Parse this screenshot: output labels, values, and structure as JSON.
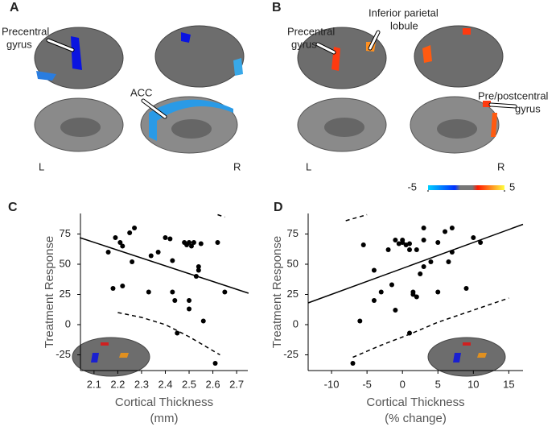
{
  "brain_panels": [
    {
      "label": "A",
      "annotations": [
        {
          "lines": [
            "Precentral",
            "gyrus"
          ]
        },
        {
          "lines": [
            "ACC"
          ]
        }
      ],
      "hemisphere_labels": [
        "L",
        "R"
      ]
    },
    {
      "label": "B",
      "annotations": [
        {
          "lines": [
            "Precentral",
            "gyrus"
          ]
        },
        {
          "lines": [
            "Inferior parietal",
            "lobule"
          ]
        },
        {
          "lines": [
            "Pre/postcentral",
            "gyrus"
          ]
        }
      ],
      "hemisphere_labels": [
        "L",
        "R"
      ],
      "colorbar": {
        "ticks": [
          -5,
          5
        ]
      }
    }
  ],
  "chart_data": [
    {
      "type": "scatter",
      "panel_label": "C",
      "y_label": "Treatment Response",
      "x_label": [
        "Cortical Thickness",
        "(mm)"
      ],
      "color": "#000000",
      "x": [
        2.16,
        2.18,
        2.19,
        2.21,
        2.22,
        2.22,
        2.25,
        2.26,
        2.27,
        2.33,
        2.34,
        2.37,
        2.4,
        2.42,
        2.43,
        2.43,
        2.44,
        2.45,
        2.48,
        2.49,
        2.5,
        2.5,
        2.5,
        2.51,
        2.52,
        2.53,
        2.54,
        2.54,
        2.55,
        2.56,
        2.61,
        2.62,
        2.65
      ],
      "values": [
        60,
        30,
        72,
        68,
        65,
        32,
        76,
        52,
        80,
        27,
        57,
        60,
        72,
        71,
        53,
        27,
        20,
        -7,
        68,
        66,
        68,
        20,
        13,
        65,
        68,
        40,
        45,
        48,
        67,
        3,
        -32,
        68,
        27
      ],
      "fit": {
        "x": [
          2.04,
          2.75
        ],
        "y": [
          72,
          26
        ]
      },
      "ci_upper": {
        "x": [
          2.62,
          2.65
        ],
        "y": [
          91,
          89
        ]
      },
      "ci_lower": {
        "x": [
          2.2,
          2.3,
          2.4,
          2.5,
          2.63
        ],
        "y": [
          10,
          6,
          0,
          -10,
          -25
        ]
      },
      "xlim": [
        2.043,
        2.747
      ],
      "ylim": [
        -38,
        92
      ],
      "xticks": [
        2.1,
        2.2,
        2.3,
        2.4,
        2.5,
        2.6,
        2.7
      ],
      "yticks": [
        -25,
        0,
        25,
        50,
        75
      ]
    },
    {
      "type": "scatter",
      "panel_label": "D",
      "y_label": "Treatment Response",
      "x_label": [
        "Cortical Thickness",
        "(% change)"
      ],
      "color": "#000000",
      "x": [
        -7,
        -6,
        -5.5,
        -4,
        -4,
        -3,
        -2,
        -1.5,
        -1,
        -1,
        -0.5,
        0,
        0,
        0.5,
        1,
        1,
        1,
        1.5,
        1.5,
        2,
        2,
        2.5,
        3,
        3,
        3,
        4,
        5,
        5,
        6,
        6.5,
        7,
        7,
        9,
        10,
        11
      ],
      "values": [
        -32,
        3,
        66,
        45,
        20,
        27,
        62,
        33,
        12,
        70,
        67,
        70,
        68,
        66,
        -7,
        67,
        62,
        25,
        27,
        23,
        62,
        42,
        80,
        48,
        70,
        52,
        68,
        27,
        77,
        52,
        60,
        80,
        30,
        72,
        68
      ],
      "fit": {
        "x": [
          -13.3,
          17
        ],
        "y": [
          18,
          83
        ]
      },
      "ci_upper": {
        "x": [
          -8,
          -5
        ],
        "y": [
          86,
          91
        ]
      },
      "ci_lower": {
        "x": [
          -7,
          -3,
          1,
          5,
          10,
          15
        ],
        "y": [
          -27,
          -17,
          -8,
          2,
          12,
          22
        ]
      },
      "xlim": [
        -13.3,
        17
      ],
      "ylim": [
        -38,
        92
      ],
      "xticks": [
        -10,
        -5,
        0,
        5,
        10,
        15
      ],
      "yticks": [
        -25,
        0,
        25,
        50,
        75
      ]
    }
  ]
}
